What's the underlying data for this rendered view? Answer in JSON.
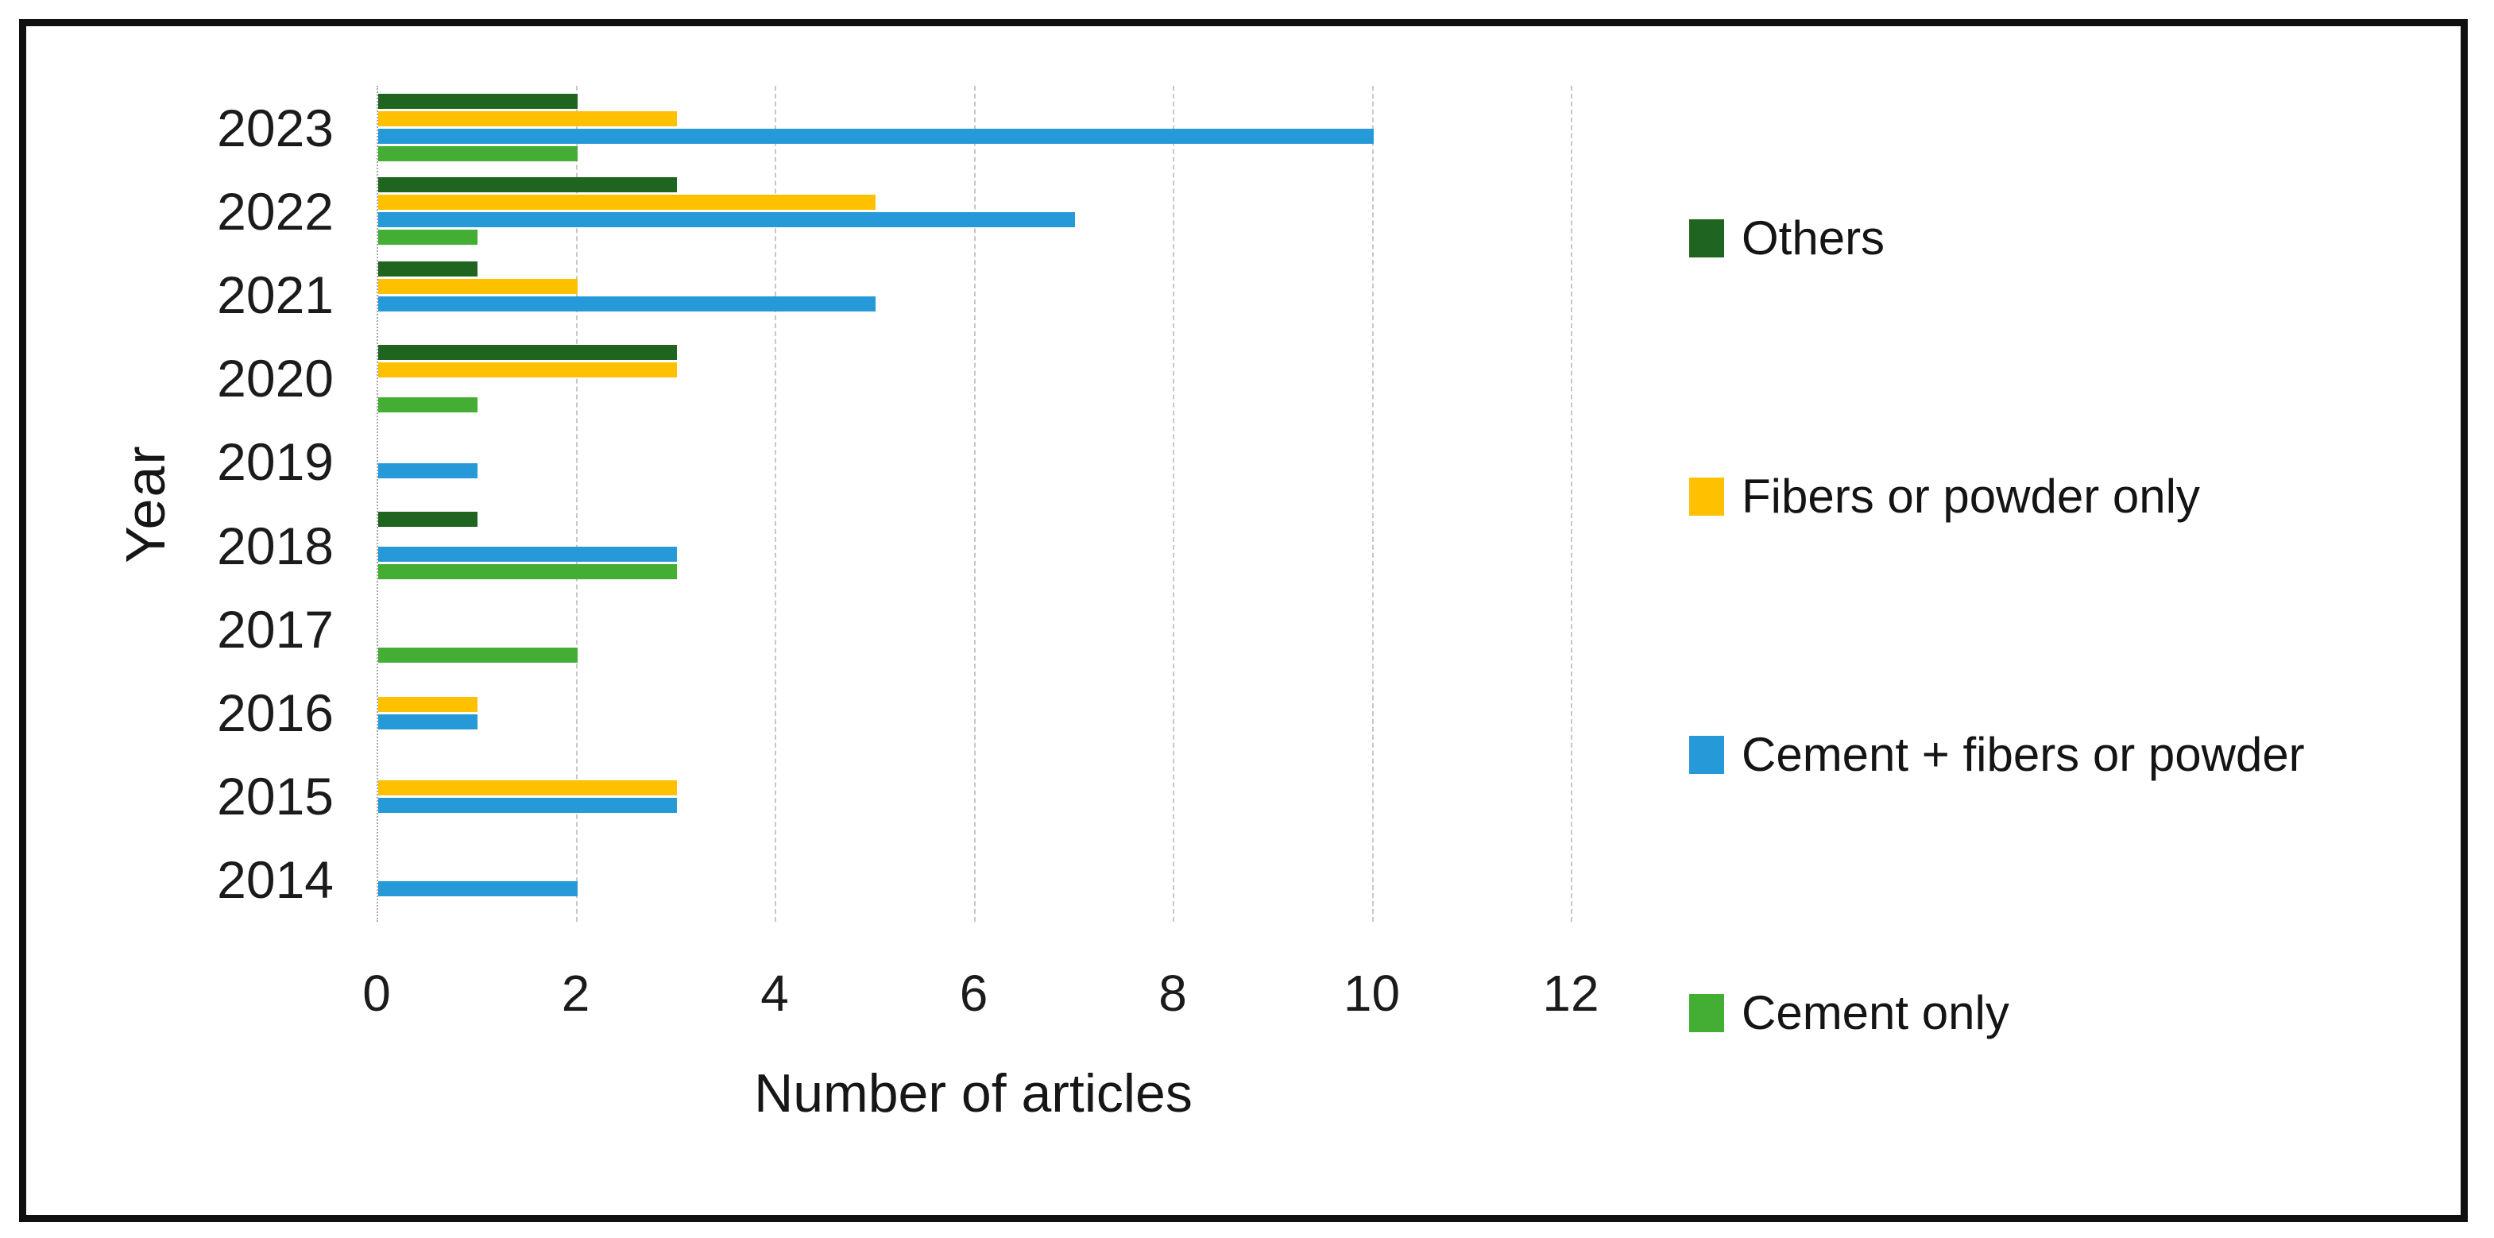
{
  "figure": {
    "background_color": "#ffffff",
    "frame_border_color": "#101010"
  },
  "chart_data": {
    "type": "bar",
    "orientation": "horizontal",
    "title": "",
    "xlabel": "Number of articles",
    "ylabel": "Year",
    "categories": [
      "2023",
      "2022",
      "2021",
      "2020",
      "2019",
      "2018",
      "2017",
      "2016",
      "2015",
      "2014"
    ],
    "series": [
      {
        "name": "Others",
        "color": "#1F651F",
        "values": [
          2,
          3,
          1,
          3,
          0,
          1,
          0,
          0,
          0,
          0
        ]
      },
      {
        "name": "Fibers or powder only",
        "color": "#FFC000",
        "values": [
          3,
          5,
          2,
          3,
          0,
          0,
          0,
          1,
          3,
          0
        ]
      },
      {
        "name": "Cement + fibers or powder",
        "color": "#2699D8",
        "values": [
          10,
          7,
          5,
          0,
          1,
          3,
          0,
          1,
          3,
          2
        ]
      },
      {
        "name": "Cement only",
        "color": "#43AD34",
        "values": [
          2,
          1,
          0,
          1,
          0,
          3,
          2,
          0,
          0,
          0
        ]
      }
    ],
    "xlim": [
      0,
      12
    ],
    "xticks": [
      "0",
      "2",
      "4",
      "6",
      "8",
      "10",
      "12"
    ],
    "grid": "vertical dashed gray",
    "gridline_color": "#c7c7c7",
    "legend_position": "right",
    "axis_text_color": "#1b1b1b"
  }
}
